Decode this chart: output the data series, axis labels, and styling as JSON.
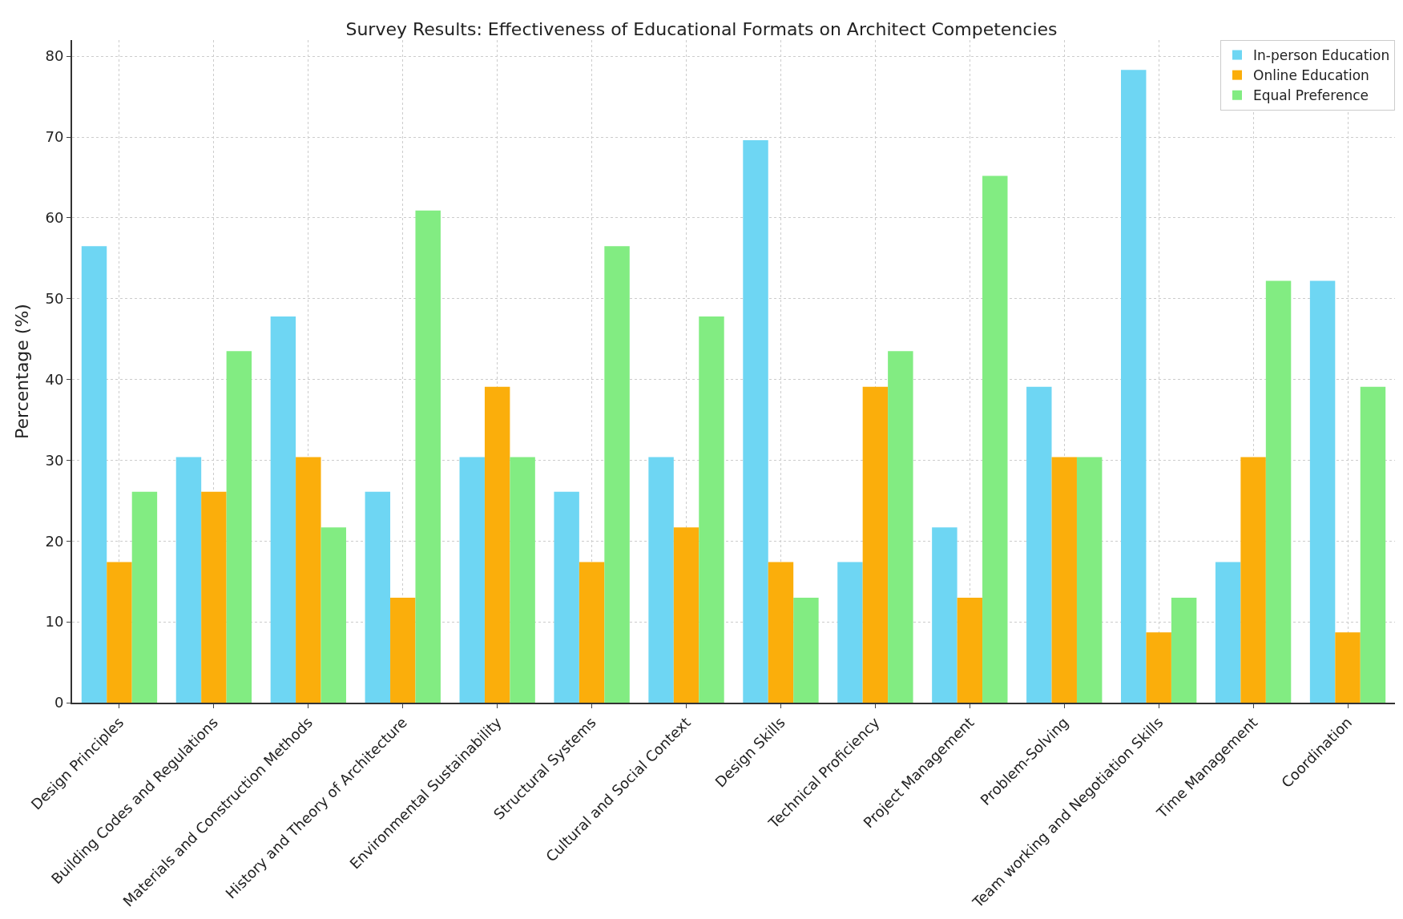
{
  "chart_data": {
    "type": "bar",
    "title": "Survey Results: Effectiveness of Educational Formats on Architect Competencies",
    "ylabel": "Percentage (%)",
    "categories": [
      "Design Principles",
      "Building Codes and Regulations",
      "Materials and Construction Methods",
      "History and Theory of Architecture",
      "Environmental Sustainability",
      "Structural Systems",
      "Cultural and Social Context",
      "Design Skills",
      "Technical Proficiency",
      "Project Management",
      "Problem-Solving",
      "Team working and Negotiation Skills",
      "Time Management",
      "Coordination"
    ],
    "series": [
      {
        "name": "In-person Education",
        "color": "#6ed6f3",
        "values": [
          56.5,
          30.4,
          47.8,
          26.1,
          30.4,
          26.1,
          30.4,
          69.6,
          17.4,
          21.7,
          39.1,
          78.3,
          17.4,
          52.2
        ]
      },
      {
        "name": "Online Education",
        "color": "#fbae0b",
        "values": [
          17.4,
          26.1,
          30.4,
          13.0,
          39.1,
          17.4,
          21.7,
          17.4,
          39.1,
          13.0,
          30.4,
          8.7,
          30.4,
          8.7
        ]
      },
      {
        "name": "Equal Preference",
        "color": "#82ec82",
        "values": [
          26.1,
          43.5,
          21.7,
          60.9,
          30.4,
          56.5,
          47.8,
          13.0,
          43.5,
          65.2,
          30.4,
          13.0,
          52.2,
          39.1
        ]
      }
    ],
    "ylim": [
      0,
      82
    ],
    "yticks": [
      0,
      10,
      20,
      30,
      40,
      50,
      60,
      70,
      80
    ],
    "grid": true,
    "legend": "top right"
  }
}
